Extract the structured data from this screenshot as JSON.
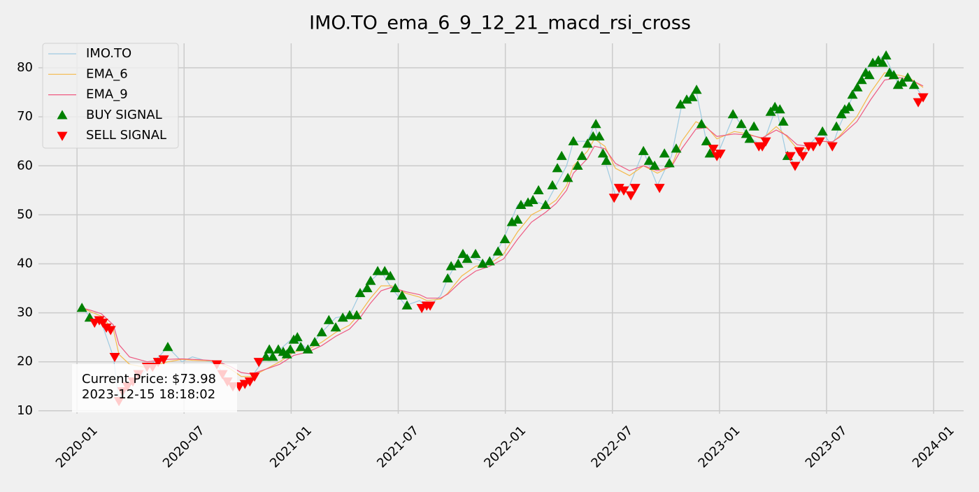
{
  "chart_data": {
    "type": "line",
    "title": "IMO.TO_ema_6_9_12_21_macd_rsi_cross",
    "xlim": [
      2019.82,
      2024.14
    ],
    "ylim": [
      9.4,
      85
    ],
    "xticks": [
      {
        "value": 2020,
        "label": "2020-01"
      },
      {
        "value": 2020.5,
        "label": "2020-07"
      },
      {
        "value": 2021,
        "label": "2021-01"
      },
      {
        "value": 2021.5,
        "label": "2021-07"
      },
      {
        "value": 2022,
        "label": "2022-01"
      },
      {
        "value": 2022.5,
        "label": "2022-07"
      },
      {
        "value": 2023,
        "label": "2023-01"
      },
      {
        "value": 2023.5,
        "label": "2023-07"
      },
      {
        "value": 2024,
        "label": "2024-01"
      }
    ],
    "yticks": [
      10,
      20,
      30,
      40,
      50,
      60,
      70,
      80
    ],
    "grid": true,
    "legend": "upper left",
    "annotation": [
      "Current Price: $73.98",
      "2023-12-15 18:18:02"
    ],
    "x": [
      2020.023,
      2020.065,
      2020.114,
      2020.17,
      2020.196,
      2020.245,
      2020.327,
      2020.424,
      2020.49,
      2020.539,
      2020.62,
      2020.653,
      2020.718,
      2020.767,
      2020.816,
      2020.882,
      2020.947,
      2021.012,
      2021.078,
      2021.143,
      2021.208,
      2021.273,
      2021.322,
      2021.371,
      2021.42,
      2021.469,
      2021.535,
      2021.6,
      2021.633,
      2021.698,
      2021.731,
      2021.796,
      2021.861,
      2021.927,
      2021.992,
      2022.057,
      2022.122,
      2022.188,
      2022.237,
      2022.286,
      2022.318,
      2022.384,
      2022.416,
      2022.465,
      2022.514,
      2022.58,
      2022.645,
      2022.71,
      2022.776,
      2022.824,
      2022.89,
      2022.939,
      2022.988,
      2023.069,
      2023.135,
      2023.2,
      2023.265,
      2023.314,
      2023.363,
      2023.412,
      2023.478,
      2023.527,
      2023.559,
      2023.641,
      2023.706,
      2023.771,
      2023.837,
      2023.886,
      2023.918,
      2023.951
    ],
    "series": [
      {
        "name": "IMO.TO",
        "type": "line",
        "color": "#9ecae1",
        "values": [
          31,
          29,
          28,
          21,
          12,
          15,
          18.5,
          23,
          20,
          21,
          20,
          19.5,
          15,
          15,
          17,
          21,
          22.5,
          25,
          22.5,
          26,
          29,
          29.5,
          34,
          36.5,
          38.5,
          35,
          31.5,
          32.5,
          31,
          33.5,
          37,
          42,
          41,
          40,
          45,
          52,
          53,
          52,
          56,
          60,
          65,
          65,
          68.5,
          61,
          54,
          56,
          63,
          56,
          62,
          72.5,
          75.5,
          65,
          62,
          70.5,
          66,
          64,
          72,
          62,
          60,
          64,
          67,
          64,
          68,
          76,
          81,
          82.5,
          76.5,
          78,
          76,
          74
        ]
      },
      {
        "name": "EMA_6",
        "type": "line",
        "color": "#f5b94a",
        "values": [
          31,
          30.2,
          29.3,
          26.5,
          21.5,
          19.5,
          18.8,
          20,
          20.5,
          20.3,
          20.2,
          20,
          18.5,
          17,
          17,
          18.5,
          20,
          22,
          22.5,
          24,
          26,
          27.5,
          30,
          33,
          35.5,
          35.5,
          34,
          33.2,
          32.5,
          32.8,
          34,
          37.5,
          39.5,
          40,
          42,
          46.5,
          50,
          51.5,
          53,
          56,
          60,
          63,
          65.5,
          64,
          59.5,
          58,
          60,
          58.5,
          60,
          65,
          69,
          68,
          65.5,
          67,
          66.5,
          65.5,
          68,
          66,
          63.5,
          63.5,
          65,
          64.8,
          66,
          70,
          75,
          79,
          78.5,
          78,
          77,
          76
        ]
      },
      {
        "name": "EMA_9",
        "type": "line",
        "color": "#ee5a82",
        "values": [
          31,
          30.5,
          29.8,
          27.5,
          23.5,
          21,
          20,
          20.5,
          20.6,
          20.5,
          20.3,
          20.1,
          19,
          17.8,
          17.5,
          18.5,
          19.5,
          21.3,
          22,
          23.3,
          25.2,
          26.7,
          29,
          32,
          34.5,
          35.2,
          34.3,
          33.7,
          33,
          33,
          33.8,
          36.5,
          38.5,
          39.5,
          41,
          45,
          48.5,
          50.5,
          52.3,
          55,
          58.5,
          61.5,
          64,
          63.5,
          60.5,
          59,
          60,
          59,
          59.8,
          63.5,
          67.5,
          67.8,
          66,
          66.5,
          66.3,
          65.7,
          67.3,
          66.2,
          64.3,
          64,
          65,
          64.9,
          65.8,
          69,
          73.5,
          77.5,
          78,
          77.7,
          77,
          76.3
        ]
      },
      {
        "name": "BUY SIGNAL",
        "type": "scatter",
        "marker": "up",
        "color": "#008000",
        "x": [
          2020.023,
          2020.059,
          2020.424,
          2020.882,
          2020.898,
          2020.914,
          2020.94,
          2020.963,
          2020.98,
          2020.996,
          2021.012,
          2021.029,
          2021.045,
          2021.078,
          2021.11,
          2021.143,
          2021.176,
          2021.208,
          2021.241,
          2021.273,
          2021.306,
          2021.322,
          2021.355,
          2021.371,
          2021.404,
          2021.437,
          2021.463,
          2021.486,
          2021.518,
          2021.541,
          2021.731,
          2021.747,
          2021.78,
          2021.802,
          2021.822,
          2021.861,
          2021.894,
          2021.927,
          2021.966,
          2021.998,
          2022.031,
          2022.057,
          2022.073,
          2022.106,
          2022.129,
          2022.155,
          2022.188,
          2022.22,
          2022.243,
          2022.263,
          2022.292,
          2022.318,
          2022.338,
          2022.358,
          2022.384,
          2022.41,
          2022.423,
          2022.439,
          2022.456,
          2022.472,
          2022.645,
          2022.671,
          2022.697,
          2022.743,
          2022.766,
          2022.798,
          2022.818,
          2022.847,
          2022.873,
          2022.893,
          2022.916,
          2022.939,
          2022.955,
          2023.063,
          2023.102,
          2023.125,
          2023.141,
          2023.161,
          2023.239,
          2023.259,
          2023.282,
          2023.298,
          2023.318,
          2023.481,
          2023.546,
          2023.569,
          2023.585,
          2023.605,
          2023.621,
          2023.644,
          2023.664,
          2023.683,
          2023.7,
          2023.716,
          2023.742,
          2023.762,
          2023.778,
          2023.794,
          2023.814,
          2023.834,
          2023.853,
          2023.879,
          2023.909
        ],
        "values": [
          31,
          29,
          23,
          21,
          22.5,
          21,
          22.5,
          22,
          21.5,
          22.5,
          24.5,
          25,
          23,
          22.5,
          24,
          26,
          28.5,
          27,
          29,
          29.5,
          29.5,
          34,
          35,
          36.5,
          38.5,
          38.5,
          37.5,
          35,
          33.5,
          31.5,
          37,
          39.5,
          40,
          42,
          41,
          42,
          40,
          40.5,
          42.5,
          45,
          48.5,
          49,
          52,
          52.5,
          53,
          55,
          52,
          56,
          59.5,
          62,
          57.5,
          65,
          60,
          62,
          64.5,
          66,
          68.5,
          66,
          62.5,
          61,
          63,
          61,
          60,
          62.5,
          60.5,
          63.5,
          72.5,
          73.5,
          74,
          75.5,
          68.5,
          65,
          62.5,
          70.5,
          68.5,
          66.5,
          65.5,
          68,
          71,
          72,
          71.5,
          69,
          62,
          67,
          68,
          70.5,
          71.5,
          72,
          74.5,
          76,
          77.5,
          79,
          78.5,
          81,
          81.5,
          81,
          82.5,
          79,
          78.5,
          76.5,
          77,
          78,
          76.5
        ]
      },
      {
        "name": "SELL SIGNAL",
        "type": "scatter",
        "marker": "down",
        "color": "#ff0000",
        "x": [
          2020.082,
          2020.104,
          2020.121,
          2020.137,
          2020.157,
          2020.176,
          2020.196,
          2020.212,
          2020.235,
          2020.261,
          2020.287,
          2020.327,
          2020.353,
          2020.379,
          2020.405,
          2020.653,
          2020.679,
          2020.702,
          2020.728,
          2020.758,
          2020.784,
          2020.807,
          2020.829,
          2020.849,
          2021.61,
          2021.633,
          2021.649,
          2022.508,
          2022.531,
          2022.553,
          2022.586,
          2022.606,
          2022.72,
          2022.971,
          2022.988,
          2023.004,
          2023.184,
          2023.2,
          2023.216,
          2023.331,
          2023.353,
          2023.373,
          2023.389,
          2023.416,
          2023.438,
          2023.468,
          2023.527,
          2023.928,
          2023.951
        ],
        "values": [
          28,
          28.5,
          28,
          27,
          26.5,
          21,
          12,
          14,
          15,
          16,
          17.5,
          19,
          19,
          20,
          20.5,
          19.5,
          17.5,
          16,
          15,
          15,
          15.5,
          16,
          17,
          20,
          31,
          31.5,
          31.5,
          53.5,
          55.5,
          55,
          54,
          55.5,
          55.5,
          63.5,
          62,
          62.5,
          64,
          64,
          65,
          62,
          60,
          63,
          62,
          64,
          64,
          65,
          64,
          73,
          74
        ]
      }
    ]
  }
}
